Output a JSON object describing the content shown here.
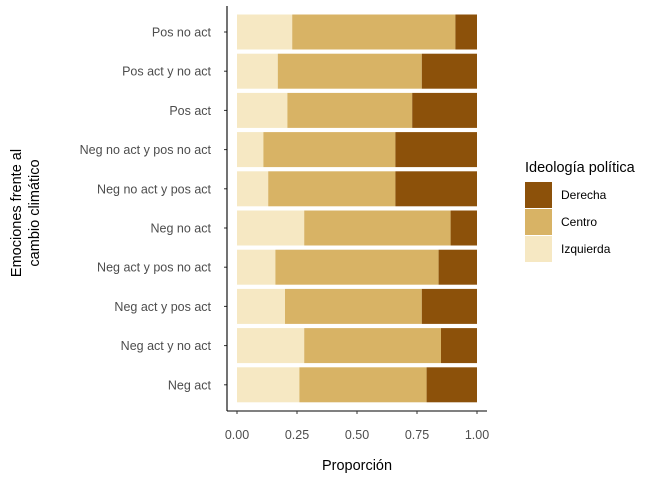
{
  "chart_data": {
    "type": "bar",
    "orientation": "horizontal",
    "stacked": true,
    "xlabel": "Proporción",
    "ylabel_lines": [
      "Emociones frente al",
      "cambio climático"
    ],
    "xlim": [
      0,
      1
    ],
    "xticks": [
      "0.00",
      "0.25",
      "0.50",
      "0.75",
      "1.00"
    ],
    "grid": false,
    "legend_position": "right",
    "legend_title": "Ideología política",
    "categories": [
      "Pos no act",
      "Pos act y no act",
      "Pos act",
      "Neg no act y pos no act",
      "Neg no act y pos act",
      "Neg no act",
      "Neg act y pos no act",
      "Neg act y pos act",
      "Neg act y no act",
      "Neg act"
    ],
    "series": [
      {
        "name": "Izquierda",
        "color": "#F6E8C3",
        "values": [
          0.23,
          0.17,
          0.21,
          0.11,
          0.13,
          0.28,
          0.16,
          0.2,
          0.28,
          0.26
        ]
      },
      {
        "name": "Centro",
        "color": "#D8B365",
        "values": [
          0.68,
          0.6,
          0.52,
          0.55,
          0.53,
          0.61,
          0.68,
          0.57,
          0.57,
          0.53
        ]
      },
      {
        "name": "Derecha",
        "color": "#8C510A",
        "values": [
          0.09,
          0.23,
          0.27,
          0.34,
          0.34,
          0.11,
          0.16,
          0.23,
          0.15,
          0.21
        ]
      }
    ],
    "legend_order": [
      "Derecha",
      "Centro",
      "Izquierda"
    ]
  }
}
